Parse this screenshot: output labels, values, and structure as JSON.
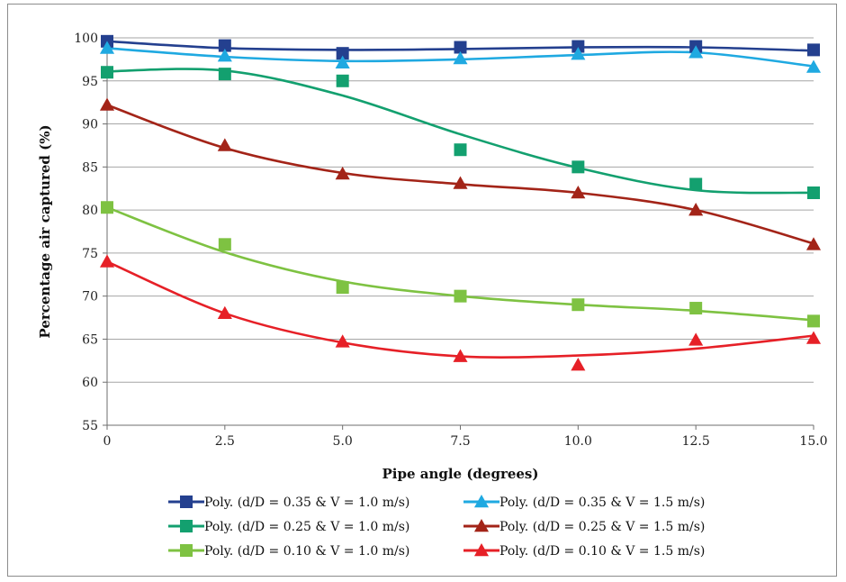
{
  "chart_data": {
    "type": "scatter",
    "title": "",
    "xlabel": "Pipe angle (degrees)",
    "ylabel": "Percentage air captured (%)",
    "xlim": [
      0,
      15
    ],
    "ylim": [
      55,
      100
    ],
    "x_ticks": [
      0,
      2.5,
      5,
      7.5,
      10,
      12.5,
      15
    ],
    "x_tick_labels": [
      "0",
      "2.5",
      "5.0",
      "7.5",
      "10.0",
      "12.5",
      "15.0"
    ],
    "y_ticks": [
      55,
      60,
      65,
      70,
      75,
      80,
      85,
      90,
      95,
      100
    ],
    "y_tick_labels": [
      "55",
      "60",
      "65",
      "70",
      "75",
      "80",
      "85",
      "90",
      "95",
      "100"
    ],
    "grid": "horizontal",
    "legend_position": "bottom",
    "x": [
      0,
      2.5,
      5,
      7.5,
      10,
      12.5,
      15
    ],
    "series": [
      {
        "name": "Poly. (d/D = 0.35 & V = 1.0 m/s)",
        "color": "#24408f",
        "marker": "square",
        "values": [
          99.6,
          99.1,
          98.2,
          98.9,
          99.0,
          99.0,
          98.6
        ],
        "trend": [
          99.6,
          98.8,
          98.6,
          98.7,
          98.9,
          98.9,
          98.5
        ]
      },
      {
        "name": "Poly. (d/D = 0.35 & V = 1.5 m/s)",
        "color": "#1fa9e1",
        "marker": "triangle",
        "values": [
          98.8,
          97.9,
          97.1,
          97.6,
          98.1,
          98.3,
          96.6
        ],
        "trend": [
          98.8,
          97.8,
          97.3,
          97.5,
          98.0,
          98.3,
          96.7
        ]
      },
      {
        "name": "Poly. (d/D = 0.25 & V = 1.0 m/s)",
        "color": "#13a06f",
        "marker": "square",
        "values": [
          96.0,
          95.8,
          95.0,
          87.0,
          85.0,
          83.0,
          82.0
        ],
        "trend": [
          96.1,
          96.2,
          93.3,
          88.8,
          84.9,
          82.3,
          82.0
        ]
      },
      {
        "name": "Poly. (d/D = 0.25 & V = 1.5 m/s)",
        "color": "#a32418",
        "marker": "triangle",
        "values": [
          92.2,
          87.5,
          84.2,
          83.1,
          82.0,
          80.0,
          76.0
        ],
        "trend": [
          92.2,
          87.2,
          84.3,
          83.0,
          82.0,
          80.0,
          76.1
        ]
      },
      {
        "name": "Poly. (d/D = 0.10 & V = 1.0 m/s)",
        "color": "#7ec242",
        "marker": "square",
        "values": [
          80.3,
          76.0,
          71.0,
          70.0,
          69.0,
          68.6,
          67.1
        ],
        "trend": [
          80.3,
          75.1,
          71.7,
          70.0,
          69.0,
          68.3,
          67.2
        ]
      },
      {
        "name": "Poly. (d/D = 0.10 & V = 1.5 m/s)",
        "color": "#e62027",
        "marker": "triangle",
        "values": [
          74.0,
          68.0,
          64.7,
          63.0,
          62.0,
          64.9,
          65.1
        ],
        "trend": [
          74.0,
          68.0,
          64.6,
          63.0,
          63.1,
          63.9,
          65.4
        ]
      }
    ]
  }
}
